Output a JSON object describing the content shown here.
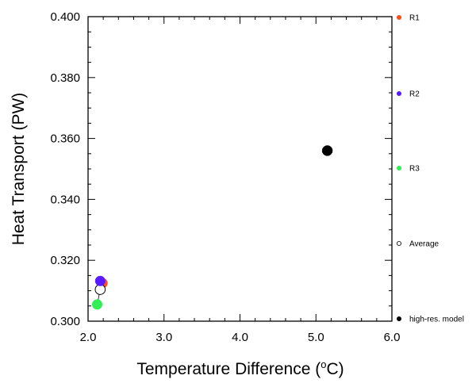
{
  "chart_data": {
    "type": "scatter",
    "xlabel_main": "Temperature Difference (",
    "xlabel_sup": "o",
    "xlabel_end": "C)",
    "ylabel": "Heat Transport (PW)",
    "xlim": [
      2.0,
      6.0
    ],
    "ylim": [
      0.3,
      0.4
    ],
    "xticks": [
      "2.0",
      "3.0",
      "4.0",
      "5.0",
      "6.0"
    ],
    "yticks": [
      "0.300",
      "0.320",
      "0.340",
      "0.360",
      "0.380",
      "0.400"
    ],
    "grid": false,
    "legend_position": "right",
    "series": [
      {
        "name": "R1",
        "color": "#ff4d1a",
        "filled": true,
        "x": 2.19,
        "y": 0.3125
      },
      {
        "name": "R2",
        "color": "#5a1aff",
        "filled": true,
        "x": 2.16,
        "y": 0.3132
      },
      {
        "name": "R3",
        "color": "#33ee55",
        "filled": true,
        "x": 2.12,
        "y": 0.3055
      },
      {
        "name": "Average",
        "color": "#000000",
        "filled": false,
        "x": 2.16,
        "y": 0.3104
      },
      {
        "name": "high-res. model",
        "color": "#000000",
        "filled": true,
        "x": 5.15,
        "y": 0.356
      }
    ]
  }
}
